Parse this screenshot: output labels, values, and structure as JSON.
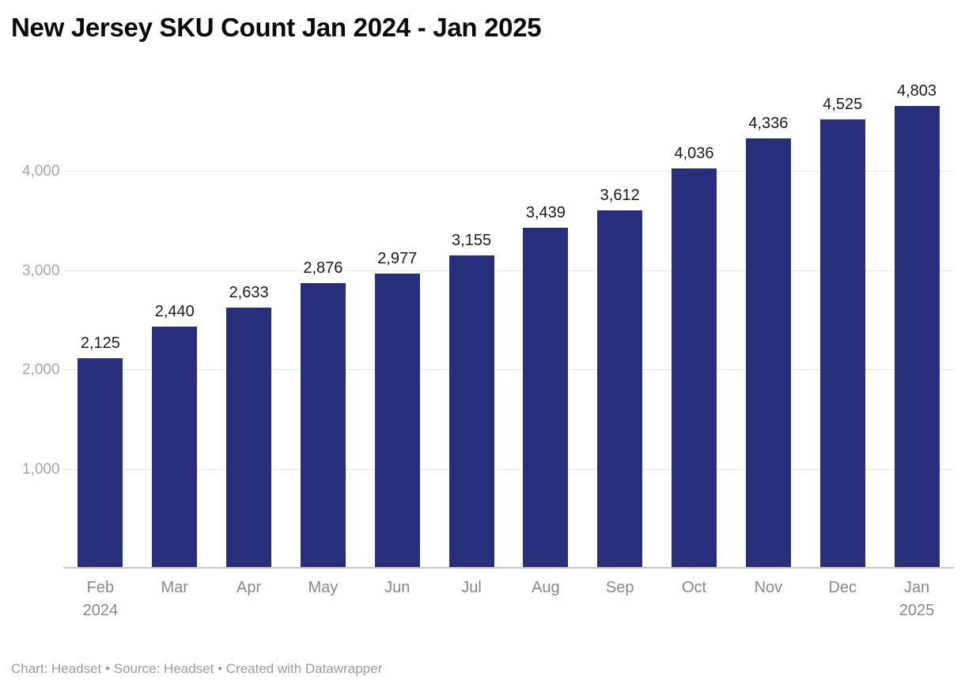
{
  "title": "New Jersey SKU Count Jan 2024 - Jan 2025",
  "footer": "Chart: Headset • Source: Headset • Created with Datawrapper",
  "colors": {
    "bar": "#272e7c",
    "gridline": "#e6e6e6",
    "baseline": "#c7c7c7",
    "value_label": "#1b1b1b",
    "axis_label": "#85898e"
  },
  "chart_data": {
    "type": "bar",
    "title": "New Jersey SKU Count Jan 2024 - Jan 2025",
    "categories": [
      "Feb 2024",
      "Mar",
      "Apr",
      "May",
      "Jun",
      "Jul",
      "Aug",
      "Sep",
      "Oct",
      "Nov",
      "Dec",
      "Jan 2025"
    ],
    "tick_labels": [
      [
        "Feb",
        "2024"
      ],
      [
        "Mar"
      ],
      [
        "Apr"
      ],
      [
        "May"
      ],
      [
        "Jun"
      ],
      [
        "Jul"
      ],
      [
        "Aug"
      ],
      [
        "Sep"
      ],
      [
        "Oct"
      ],
      [
        "Nov"
      ],
      [
        "Dec"
      ],
      [
        "Jan",
        "2025"
      ]
    ],
    "values": [
      2125,
      2440,
      2633,
      2876,
      2977,
      3155,
      3439,
      3612,
      4036,
      4336,
      4525,
      4803
    ],
    "value_labels": [
      "2,125",
      "2,440",
      "2,633",
      "2,876",
      "2,977",
      "3,155",
      "3,439",
      "3,612",
      "4,036",
      "4,336",
      "4,525",
      "4,803"
    ],
    "xlabel": "",
    "ylabel": "",
    "ylim": [
      0,
      4900
    ],
    "yticks": [
      1000,
      2000,
      3000,
      4000
    ],
    "ytick_labels": [
      "1,000",
      "2,000",
      "3,000",
      "4,000"
    ],
    "grid": true,
    "legend": false,
    "bar_color": "#272e7c"
  }
}
